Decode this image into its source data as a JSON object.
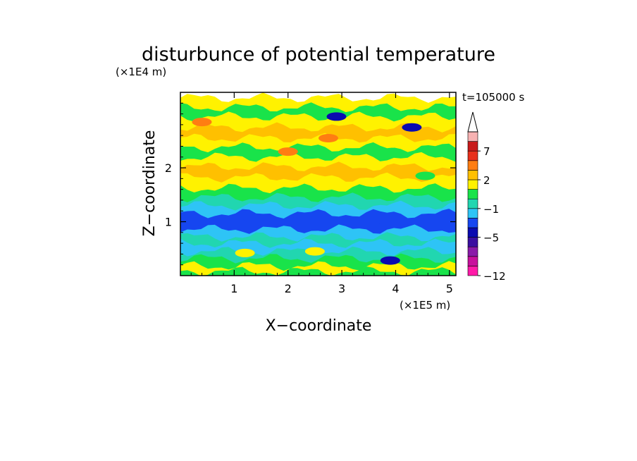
{
  "chart_data": {
    "type": "heatmap",
    "title": "disturbunce of potential temperature",
    "xlabel": "X−coordinate",
    "ylabel": "Z−coordinate",
    "x_scale_label": "(×1E5 m)",
    "y_scale_label": "(×1E4 m)",
    "time_label": "t=105000 s",
    "xlim": [
      0,
      5.12
    ],
    "ylim": [
      0,
      3.4
    ],
    "x_ticks": [
      "1",
      "2",
      "3",
      "4",
      "5"
    ],
    "x_tick_values": [
      1,
      2,
      3,
      4,
      5
    ],
    "y_ticks": [
      "1",
      "2"
    ],
    "y_tick_values": [
      1,
      2
    ],
    "colorbar": {
      "colors": [
        "#ff1aa8",
        "#c8109c",
        "#8a1aa8",
        "#3a0fa0",
        "#0a0ab0",
        "#1646f0",
        "#2ec4f6",
        "#21d6b0",
        "#19e34a",
        "#fff200",
        "#ffc000",
        "#ff7d12",
        "#e8301c",
        "#c81a1a",
        "#f7b2b2"
      ],
      "extend": "max",
      "labels": [
        "−12",
        "−5",
        "−1",
        "2",
        "7"
      ],
      "label_levels": [
        0,
        4,
        7,
        10,
        13
      ]
    },
    "bands": [
      {
        "z": 0.08,
        "value": 0,
        "color": "#19e34a"
      },
      {
        "z": 0.18,
        "value": 1,
        "color": "#fff200"
      },
      {
        "z": 0.32,
        "value": 0,
        "color": "#19e34a"
      },
      {
        "z": 0.45,
        "value": 0,
        "color": "#21d6b0"
      },
      {
        "z": 0.6,
        "value": -1,
        "color": "#2ec4f6"
      },
      {
        "z": 0.72,
        "value": 0,
        "color": "#21d6b0"
      },
      {
        "z": 0.86,
        "value": -1,
        "color": "#2ec4f6"
      },
      {
        "z": 1.0,
        "value": -3,
        "color": "#1646f0"
      },
      {
        "z": 1.15,
        "value": -3,
        "color": "#1646f0"
      },
      {
        "z": 1.3,
        "value": -1,
        "color": "#2ec4f6"
      },
      {
        "z": 1.45,
        "value": 0,
        "color": "#21d6b0"
      },
      {
        "z": 1.62,
        "value": 0,
        "color": "#19e34a"
      },
      {
        "z": 1.82,
        "value": 1,
        "color": "#fff200"
      },
      {
        "z": 2.02,
        "value": 2,
        "color": "#ffc000"
      },
      {
        "z": 2.2,
        "value": 1,
        "color": "#fff200"
      },
      {
        "z": 2.38,
        "value": 0,
        "color": "#19e34a"
      },
      {
        "z": 2.55,
        "value": 1,
        "color": "#fff200"
      },
      {
        "z": 2.75,
        "value": 2,
        "color": "#ffc000"
      },
      {
        "z": 2.95,
        "value": 1,
        "color": "#fff200"
      },
      {
        "z": 3.12,
        "value": 0,
        "color": "#19e34a"
      },
      {
        "z": 3.3,
        "value": 1,
        "color": "#fff200"
      }
    ],
    "features": [
      {
        "x": 0.5,
        "z": 1.92,
        "value": 2,
        "color": "#ffc000"
      },
      {
        "x": 2.0,
        "z": 2.3,
        "value": 3,
        "color": "#ff7d12"
      },
      {
        "x": 2.75,
        "z": 2.55,
        "value": 3,
        "color": "#ff7d12"
      },
      {
        "x": 0.4,
        "z": 2.85,
        "value": 3,
        "color": "#ff7d12"
      },
      {
        "x": 3.95,
        "z": 2.45,
        "value": 1,
        "color": "#fff200"
      },
      {
        "x": 2.9,
        "z": 2.95,
        "value": -4,
        "color": "#0a0ab0"
      },
      {
        "x": 4.3,
        "z": 2.75,
        "value": -4,
        "color": "#0a0ab0"
      },
      {
        "x": 4.55,
        "z": 1.85,
        "value": 0,
        "color": "#19e34a"
      },
      {
        "x": 3.9,
        "z": 0.28,
        "value": -4,
        "color": "#0a0ab0"
      },
      {
        "x": 2.5,
        "z": 0.45,
        "value": 1,
        "color": "#fff200"
      },
      {
        "x": 1.2,
        "z": 0.42,
        "value": 1,
        "color": "#fff200"
      }
    ]
  }
}
